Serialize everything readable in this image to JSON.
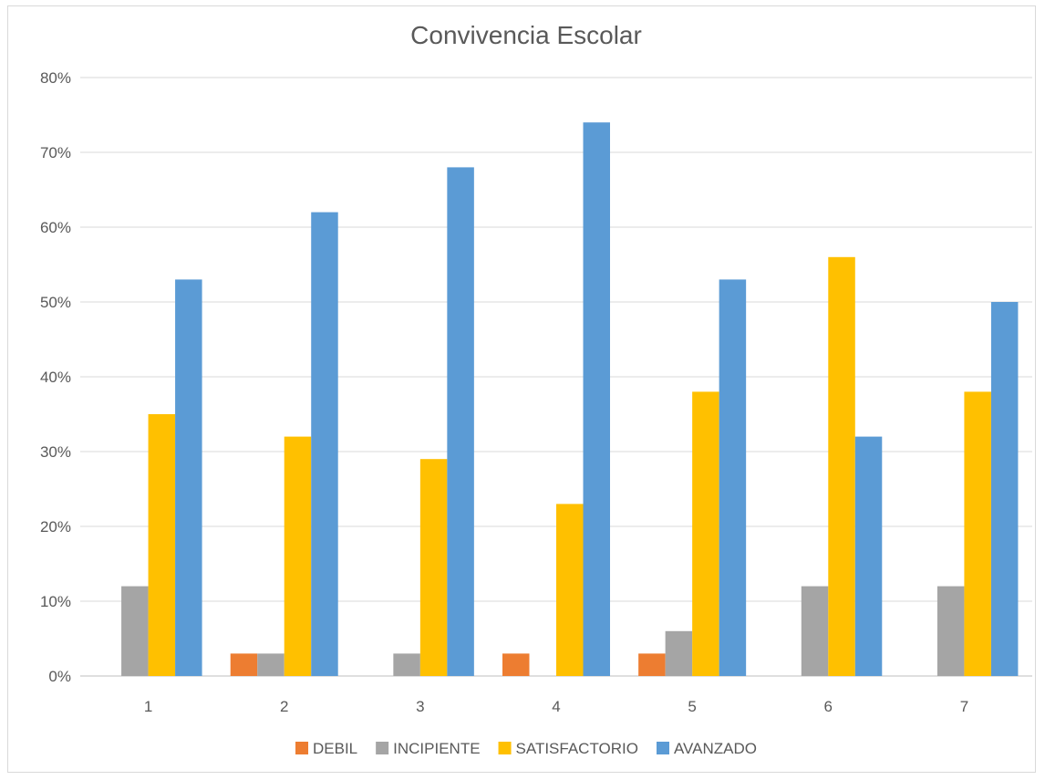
{
  "chart_data": {
    "type": "bar",
    "title": "Convivencia Escolar",
    "categories": [
      "1",
      "2",
      "3",
      "4",
      "5",
      "6",
      "7"
    ],
    "series": [
      {
        "name": "DEBIL",
        "color": "#ED7D31",
        "values": [
          0,
          3,
          0,
          3,
          3,
          0,
          0
        ]
      },
      {
        "name": "INCIPIENTE",
        "color": "#A5A5A5",
        "values": [
          12,
          3,
          3,
          0,
          6,
          12,
          12
        ]
      },
      {
        "name": "SATISFACTORIO",
        "color": "#FFC000",
        "values": [
          35,
          32,
          29,
          23,
          38,
          56,
          38
        ]
      },
      {
        "name": "AVANZADO",
        "color": "#5B9BD5",
        "values": [
          53,
          62,
          68,
          74,
          53,
          32,
          50
        ]
      }
    ],
    "ylim": [
      0,
      80
    ],
    "yticks": [
      "0%",
      "10%",
      "20%",
      "30%",
      "40%",
      "50%",
      "60%",
      "70%",
      "80%"
    ],
    "grid": true,
    "legend_position": "bottom"
  }
}
